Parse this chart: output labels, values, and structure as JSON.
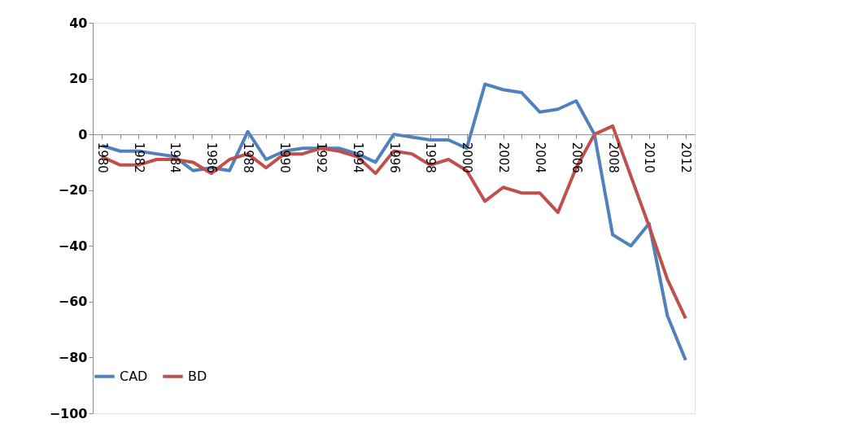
{
  "chart_data": {
    "type": "line",
    "categories": [
      "1980",
      null,
      "1982",
      null,
      "1984",
      null,
      "1986",
      null,
      "1988",
      null,
      "1990",
      null,
      "1992",
      null,
      "1994",
      null,
      "1996",
      null,
      "1998",
      null,
      "2000",
      null,
      "2002",
      null,
      "2004",
      null,
      "2006",
      null,
      "2008",
      null,
      "2010",
      null,
      "2012"
    ],
    "series": [
      {
        "name": "CAD",
        "color": "#4f81bd",
        "values": [
          -4,
          -6,
          -6,
          -7,
          -8,
          -13,
          -12,
          -13,
          1,
          -9,
          -6,
          -5,
          -5,
          -5,
          -7,
          -10,
          0,
          -1,
          -2,
          -2,
          -5,
          18,
          16,
          15,
          8,
          9,
          12,
          0,
          -36,
          -40,
          -32,
          -65,
          -81
        ]
      },
      {
        "name": "BD",
        "color": "#c0504d",
        "values": [
          -8,
          -11,
          -11,
          -9,
          -9,
          -10,
          -14,
          -9,
          -7,
          -12,
          -7,
          -7,
          -5,
          -6,
          -8,
          -14,
          -6,
          -7,
          -11,
          -9,
          -13,
          -24,
          -19,
          -21,
          -21,
          -28,
          -12,
          0,
          3,
          -15,
          -33,
          -52,
          -66
        ]
      }
    ],
    "ylim": [
      -100,
      40
    ],
    "yticks": [
      -100,
      -80,
      -60,
      -40,
      -20,
      0,
      20,
      40
    ],
    "grid": false,
    "legend": "bottom",
    "marker": "none",
    "line_style": "solid"
  }
}
